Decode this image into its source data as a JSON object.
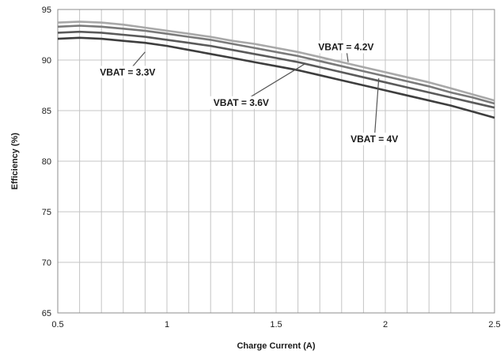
{
  "chart_data": {
    "type": "line",
    "title": "",
    "xlabel": "Charge Current (A)",
    "ylabel": "Efficiency (%)",
    "xlim": [
      0.5,
      2.5
    ],
    "ylim": [
      65,
      95
    ],
    "xticks": [
      0.5,
      1,
      1.5,
      2,
      2.5
    ],
    "xtick_labels": [
      "0.5",
      "1",
      "1.5",
      "2",
      "2.5"
    ],
    "yticks": [
      65,
      70,
      75,
      80,
      85,
      90,
      95
    ],
    "ytick_labels": [
      "65",
      "70",
      "75",
      "80",
      "85",
      "90",
      "95"
    ],
    "x_minor_step": 0.1,
    "grid": true,
    "legend": "none",
    "series": [
      {
        "name": "VBAT = 4.2V",
        "color": "#a8a8a8",
        "x": [
          0.5,
          0.6,
          0.7,
          0.8,
          0.9,
          1.0,
          1.1,
          1.2,
          1.3,
          1.4,
          1.5,
          1.6,
          1.7,
          1.8,
          1.9,
          2.0,
          2.1,
          2.2,
          2.3,
          2.4,
          2.5
        ],
        "y": [
          93.7,
          93.8,
          93.7,
          93.5,
          93.2,
          92.9,
          92.6,
          92.3,
          91.9,
          91.6,
          91.2,
          90.8,
          90.3,
          89.8,
          89.3,
          88.8,
          88.3,
          87.8,
          87.2,
          86.6,
          86.0
        ]
      },
      {
        "name": "VBAT = 4V",
        "color": "#7a7a7a",
        "x": [
          0.5,
          0.6,
          0.7,
          0.8,
          0.9,
          1.0,
          1.1,
          1.2,
          1.3,
          1.4,
          1.5,
          1.6,
          1.7,
          1.8,
          1.9,
          2.0,
          2.1,
          2.2,
          2.3,
          2.4,
          2.5
        ],
        "y": [
          93.3,
          93.4,
          93.3,
          93.1,
          92.9,
          92.6,
          92.3,
          92.0,
          91.6,
          91.2,
          90.8,
          90.4,
          89.9,
          89.4,
          88.9,
          88.4,
          87.9,
          87.4,
          86.8,
          86.3,
          85.7
        ]
      },
      {
        "name": "VBAT = 3.6V",
        "color": "#5a5a5a",
        "x": [
          0.5,
          0.6,
          0.7,
          0.8,
          0.9,
          1.0,
          1.1,
          1.2,
          1.3,
          1.4,
          1.5,
          1.6,
          1.7,
          1.8,
          1.9,
          2.0,
          2.1,
          2.2,
          2.3,
          2.4,
          2.5
        ],
        "y": [
          92.7,
          92.8,
          92.7,
          92.5,
          92.3,
          92.0,
          91.7,
          91.4,
          91.0,
          90.6,
          90.2,
          89.8,
          89.3,
          88.8,
          88.3,
          87.8,
          87.3,
          86.8,
          86.3,
          85.8,
          85.3
        ]
      },
      {
        "name": "VBAT = 3.3V",
        "color": "#3e3e3e",
        "x": [
          0.5,
          0.6,
          0.7,
          0.8,
          0.9,
          1.0,
          1.1,
          1.2,
          1.3,
          1.4,
          1.5,
          1.6,
          1.7,
          1.8,
          1.9,
          2.0,
          2.1,
          2.2,
          2.3,
          2.4,
          2.5
        ],
        "y": [
          92.1,
          92.2,
          92.1,
          91.9,
          91.7,
          91.4,
          91.0,
          90.6,
          90.2,
          89.8,
          89.4,
          89.0,
          88.5,
          88.0,
          87.5,
          87.0,
          86.5,
          86.0,
          85.5,
          84.9,
          84.3
        ]
      }
    ],
    "annotations": [
      {
        "text": "VBAT = 4.2V",
        "label_x": 1.82,
        "label_y": 91.3,
        "target_x": 1.83,
        "target_y": 89.8
      },
      {
        "text": "VBAT = 3.3V",
        "label_x": 0.82,
        "label_y": 88.8,
        "target_x": 0.9,
        "target_y": 90.8
      },
      {
        "text": "VBAT = 3.6V",
        "label_x": 1.34,
        "label_y": 85.8,
        "target_x": 1.63,
        "target_y": 89.6
      },
      {
        "text": "VBAT = 4V",
        "label_x": 1.95,
        "label_y": 82.2,
        "target_x": 1.97,
        "target_y": 88.2
      }
    ]
  }
}
